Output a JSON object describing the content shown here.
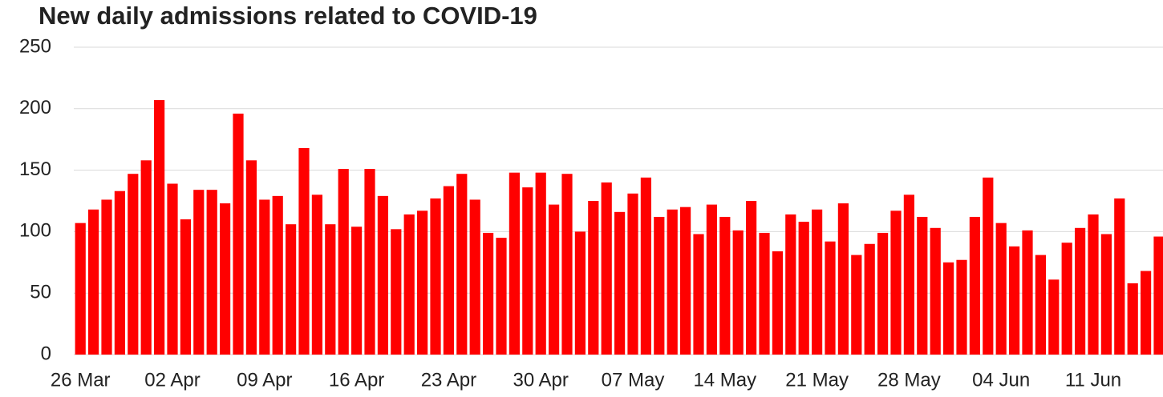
{
  "chart_data": {
    "type": "bar",
    "title": "New daily admissions related to COVID-19",
    "categories": [
      "26 Mar",
      null,
      null,
      null,
      null,
      null,
      null,
      "02 Apr",
      null,
      null,
      null,
      null,
      null,
      null,
      "09 Apr",
      null,
      null,
      null,
      null,
      null,
      null,
      "16 Apr",
      null,
      null,
      null,
      null,
      null,
      null,
      "23 Apr",
      null,
      null,
      null,
      null,
      null,
      null,
      "30 Apr",
      null,
      null,
      null,
      null,
      null,
      null,
      "07 May",
      null,
      null,
      null,
      null,
      null,
      null,
      "14 May",
      null,
      null,
      null,
      null,
      null,
      null,
      "21 May",
      null,
      null,
      null,
      null,
      null,
      null,
      "28 May",
      null,
      null,
      null,
      null,
      null,
      null,
      "04 Jun",
      null,
      null,
      null,
      null,
      null,
      null,
      "11 Jun",
      null,
      null,
      null,
      null,
      null
    ],
    "values": [
      107,
      118,
      126,
      133,
      147,
      158,
      207,
      139,
      110,
      134,
      134,
      123,
      196,
      158,
      126,
      129,
      106,
      168,
      130,
      106,
      151,
      104,
      151,
      129,
      102,
      114,
      117,
      127,
      137,
      147,
      126,
      99,
      95,
      148,
      136,
      148,
      122,
      147,
      100,
      125,
      140,
      116,
      131,
      144,
      112,
      118,
      120,
      98,
      122,
      112,
      101,
      125,
      99,
      84,
      114,
      108,
      118,
      92,
      123,
      81,
      90,
      99,
      117,
      130,
      112,
      103,
      75,
      77,
      112,
      144,
      107,
      88,
      101,
      81,
      61,
      91,
      103,
      114,
      98,
      127,
      58,
      68,
      96
    ],
    "color": "#ff0000",
    "ylim": [
      0,
      250
    ],
    "yticks": [
      0,
      50,
      100,
      150,
      200,
      250
    ],
    "grid": true
  }
}
